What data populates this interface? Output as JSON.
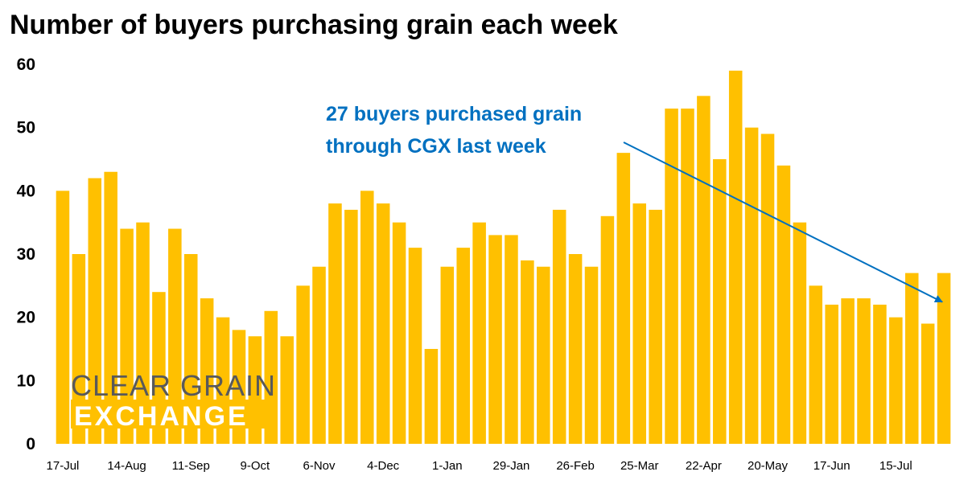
{
  "colors": {
    "bar": "#FFC000",
    "annotation": "#0070C0",
    "logo_text": "#595959",
    "logo_band": "#FFC000",
    "logo_band_text": "#FFFFFF"
  },
  "logo": {
    "line1": "CLEAR GRAIN",
    "line2": "EXCHANGE"
  },
  "chart_data": {
    "type": "bar",
    "title": "Number of buyers purchasing grain each week",
    "xlabel": "",
    "ylabel": "",
    "ylim": [
      0,
      60
    ],
    "yticks": [
      0,
      10,
      20,
      30,
      40,
      50,
      60
    ],
    "grid": false,
    "x_tick_labels": [
      {
        "index": 0,
        "label": "17-Jul"
      },
      {
        "index": 4,
        "label": "14-Aug"
      },
      {
        "index": 8,
        "label": "11-Sep"
      },
      {
        "index": 12,
        "label": "9-Oct"
      },
      {
        "index": 16,
        "label": "6-Nov"
      },
      {
        "index": 20,
        "label": "4-Dec"
      },
      {
        "index": 24,
        "label": "1-Jan"
      },
      {
        "index": 28,
        "label": "29-Jan"
      },
      {
        "index": 32,
        "label": "26-Feb"
      },
      {
        "index": 36,
        "label": "25-Mar"
      },
      {
        "index": 40,
        "label": "22-Apr"
      },
      {
        "index": 44,
        "label": "20-May"
      },
      {
        "index": 48,
        "label": "17-Jun"
      },
      {
        "index": 52,
        "label": "15-Jul"
      }
    ],
    "values": [
      40,
      30,
      42,
      43,
      34,
      35,
      24,
      34,
      30,
      23,
      20,
      18,
      17,
      21,
      17,
      25,
      28,
      38,
      37,
      40,
      38,
      35,
      31,
      15,
      28,
      31,
      35,
      33,
      33,
      29,
      28,
      37,
      30,
      28,
      36,
      46,
      38,
      37,
      53,
      53,
      55,
      45,
      59,
      50,
      49,
      44,
      35,
      25,
      22,
      23,
      23,
      22,
      20,
      27,
      19,
      27
    ],
    "annotation": {
      "lines": [
        "27 buyers purchased grain",
        "through CGX last week"
      ],
      "target_index": 55
    }
  }
}
